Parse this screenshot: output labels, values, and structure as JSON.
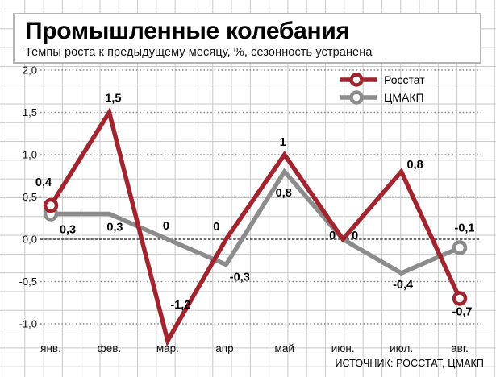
{
  "header": {
    "title": "Промышленные колебания",
    "subtitle": "Темпы роста к предыдущему месяцу, %, сезонность устранена"
  },
  "footer": {
    "source": "ИСТОЧНИК: РОССТАТ, ЦМАКП"
  },
  "colors": {
    "rosstat_red": "#a2242e",
    "cmakp_gray": "#8c8c8c",
    "background_grid": "#c7c7c7"
  },
  "chart_data": {
    "type": "line",
    "title": "Промышленные колебания",
    "subtitle": "Темпы роста к предыдущему месяцу, %, сезонность устранена",
    "categories": [
      "янв.",
      "фев.",
      "мар.",
      "апр.",
      "май",
      "июн.",
      "июл.",
      "авг."
    ],
    "yticks": [
      {
        "v": 2,
        "label": "2,0"
      },
      {
        "v": 1.5,
        "label": "1,5"
      },
      {
        "v": 1,
        "label": "1,0"
      },
      {
        "v": 0.5,
        "label": "0,5"
      },
      {
        "v": 0,
        "label": "0,0"
      },
      {
        "v": -0.5,
        "label": "-0,5"
      },
      {
        "v": -1,
        "label": "-1,0"
      }
    ],
    "ylim": [
      -1.3,
      2.0
    ],
    "grid": "dotted horizontal line at each tick, dark dashed zero line, faint square background grid",
    "legend_position": "top-right",
    "series": [
      {
        "name": "Росстат",
        "color": "#a2242e",
        "values": [
          0.4,
          1.5,
          -1.2,
          0,
          1,
          0,
          0.8,
          -0.7
        ],
        "point_labels": [
          "0,4",
          "1,5",
          "-1,2",
          "0",
          "1",
          "0",
          "0,8",
          "-0,7"
        ],
        "label_offsets": [
          [
            -9,
            -29
          ],
          [
            5,
            -18
          ],
          [
            16,
            -45
          ],
          [
            -12,
            -16
          ],
          [
            -2,
            -16
          ],
          [
            -13,
            -5
          ],
          [
            17,
            -9
          ],
          [
            3,
            16
          ]
        ]
      },
      {
        "name": "ЦМАКП",
        "color": "#8c8c8c",
        "values": [
          0.3,
          0.3,
          0,
          -0.3,
          0.8,
          0,
          -0.4,
          -0.1
        ],
        "point_labels": [
          "0,3",
          "0,3",
          "0",
          "-0,3",
          "0,8",
          "0",
          "-0,4",
          "-0,1"
        ],
        "label_offsets": [
          [
            21,
            19
          ],
          [
            7,
            16
          ],
          [
            -2,
            -17
          ],
          [
            17,
            15
          ],
          [
            -1,
            26
          ],
          [
            15,
            -5
          ],
          [
            2,
            14
          ],
          [
            6,
            -25
          ]
        ]
      }
    ]
  }
}
